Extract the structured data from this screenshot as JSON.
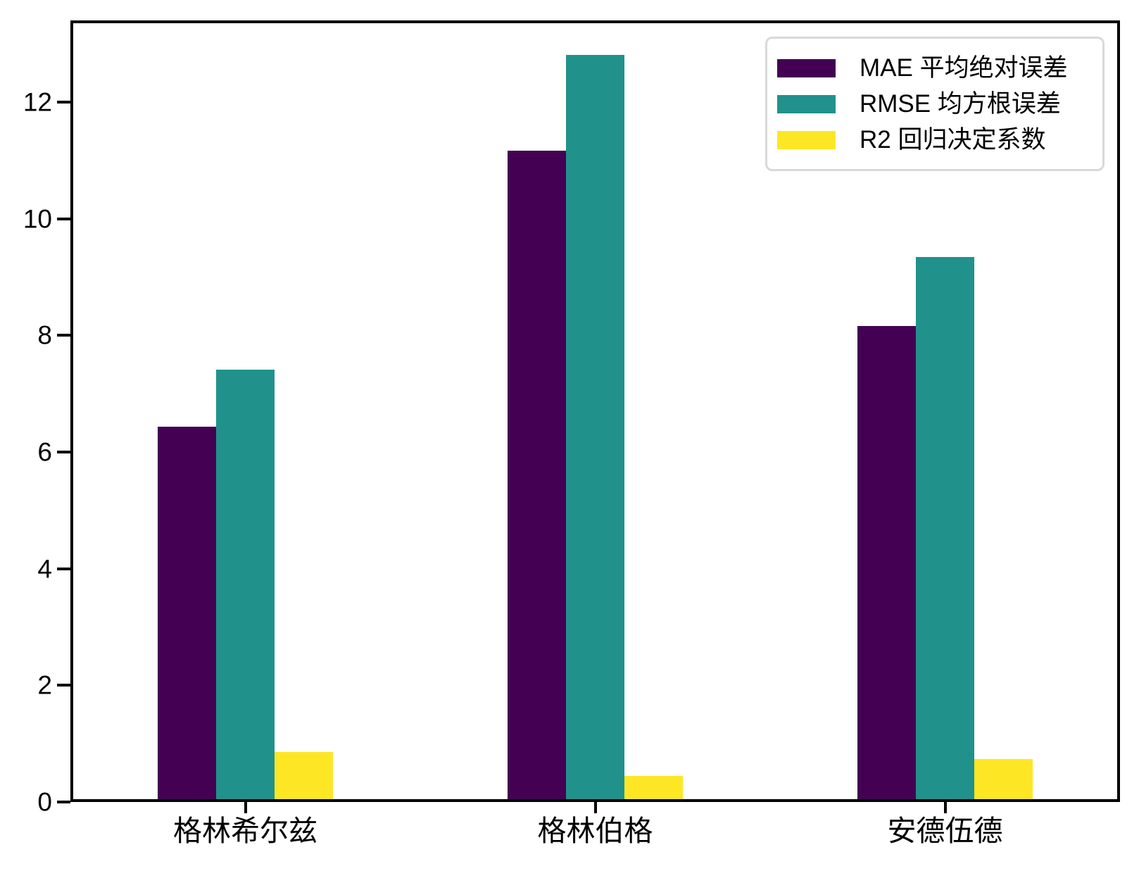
{
  "chart_data": {
    "type": "bar",
    "title": "",
    "xlabel": "",
    "ylabel": "",
    "categories": [
      "格林希尔兹",
      "格林伯格",
      "安德伍德"
    ],
    "series": [
      {
        "name": "MAE 平均绝对误差",
        "color": "#440154",
        "values": [
          6.39,
          11.12,
          8.11
        ]
      },
      {
        "name": "RMSE 均方根误差",
        "color": "#21918c",
        "values": [
          7.37,
          12.76,
          9.29
        ]
      },
      {
        "name": "R2 回归决定系数",
        "color": "#fde725",
        "values": [
          0.81,
          0.4,
          0.69
        ]
      }
    ],
    "yticks": [
      0,
      2,
      4,
      6,
      8,
      10,
      12
    ],
    "ylim": [
      0,
      13.4
    ],
    "grid": false,
    "legend_position": "upper right",
    "axis_color": "#000000",
    "background_color": "#ffffff",
    "legend_border_color": "#d9d9d9"
  }
}
